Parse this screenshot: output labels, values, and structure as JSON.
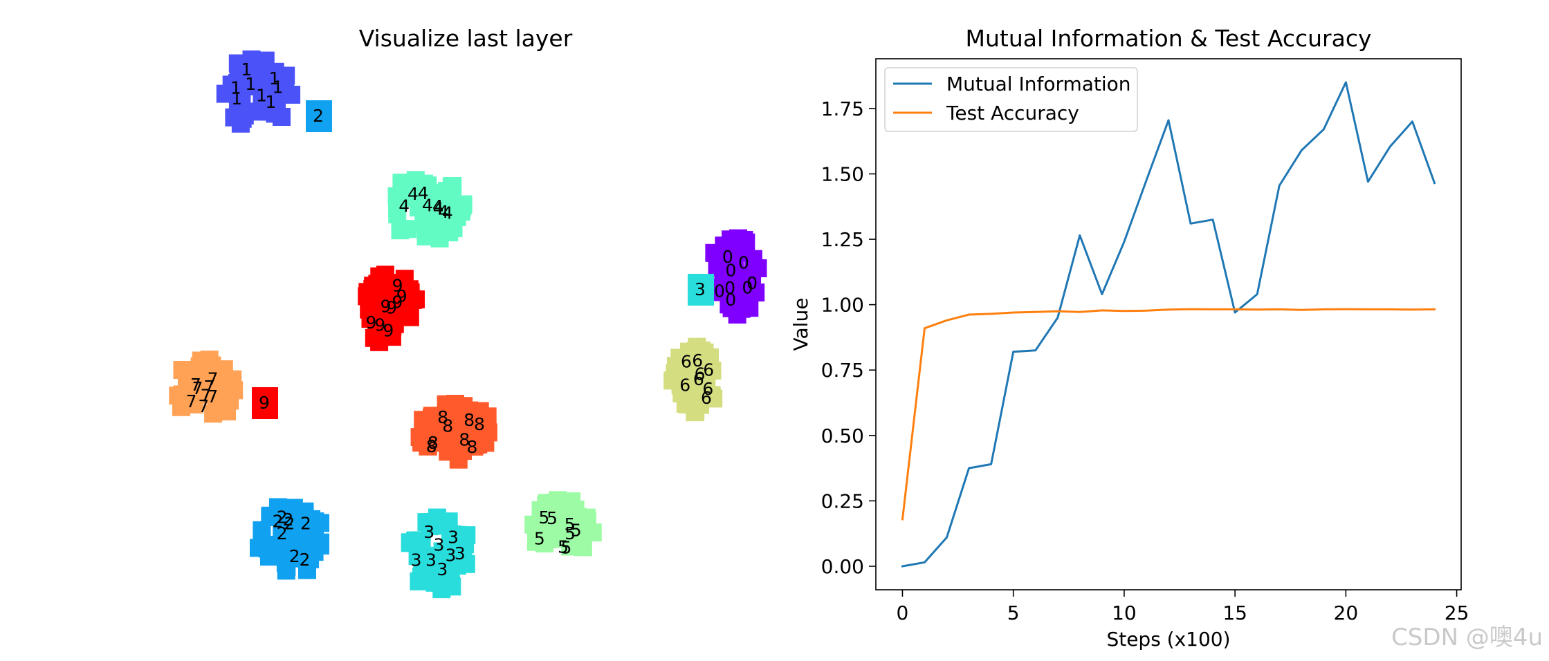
{
  "chart_data": [
    {
      "type": "scatter",
      "title": "Visualize last layer",
      "xlabel": "",
      "ylabel": "",
      "axes_visible": false,
      "clusters": [
        {
          "label": "0",
          "color": "#7f00ff"
        },
        {
          "label": "1",
          "color": "#4a52f8"
        },
        {
          "label": "2",
          "color": "#10a2f0"
        },
        {
          "label": "3",
          "color": "#2adddd"
        },
        {
          "label": "4",
          "color": "#62fbc4"
        },
        {
          "label": "5",
          "color": "#9cfba4"
        },
        {
          "label": "6",
          "color": "#d4dd80"
        },
        {
          "label": "7",
          "color": "#ffa256"
        },
        {
          "label": "8",
          "color": "#ff5a2c"
        },
        {
          "label": "9",
          "color": "#ff0000"
        }
      ]
    },
    {
      "type": "line",
      "title": "Mutual Information & Test Accuracy",
      "xlabel": "Steps (x100)",
      "ylabel": "Value",
      "xlim": [
        -1.2,
        25.2
      ],
      "ylim": [
        -0.09,
        1.94
      ],
      "xticks": [
        0,
        5,
        10,
        15,
        20,
        25
      ],
      "xtick_labels": [
        "0",
        "5",
        "10",
        "15",
        "20",
        "25"
      ],
      "yticks": [
        0.0,
        0.25,
        0.5,
        0.75,
        1.0,
        1.25,
        1.5,
        1.75
      ],
      "ytick_labels": [
        "0.00",
        "0.25",
        "0.50",
        "0.75",
        "1.00",
        "1.25",
        "1.50",
        "1.75"
      ],
      "legend_position": "upper-left",
      "x": [
        0,
        1,
        2,
        3,
        4,
        5,
        6,
        7,
        8,
        9,
        10,
        11,
        12,
        13,
        14,
        15,
        16,
        17,
        18,
        19,
        20,
        21,
        22,
        23,
        24
      ],
      "series": [
        {
          "name": "Mutual Information",
          "color": "#1f77b4",
          "values": [
            0.0,
            0.015,
            0.11,
            0.375,
            0.39,
            0.82,
            0.825,
            0.95,
            1.265,
            1.04,
            1.24,
            1.475,
            1.705,
            1.31,
            1.325,
            0.97,
            1.04,
            1.455,
            1.59,
            1.67,
            1.85,
            1.47,
            1.605,
            1.7,
            1.465
          ]
        },
        {
          "name": "Test Accuracy",
          "color": "#ff7f0e",
          "values": [
            0.18,
            0.91,
            0.94,
            0.962,
            0.965,
            0.97,
            0.972,
            0.975,
            0.972,
            0.978,
            0.976,
            0.977,
            0.981,
            0.983,
            0.982,
            0.982,
            0.981,
            0.982,
            0.98,
            0.982,
            0.983,
            0.982,
            0.982,
            0.981,
            0.982
          ]
        }
      ]
    }
  ],
  "watermark": "CSDN @噢4u"
}
